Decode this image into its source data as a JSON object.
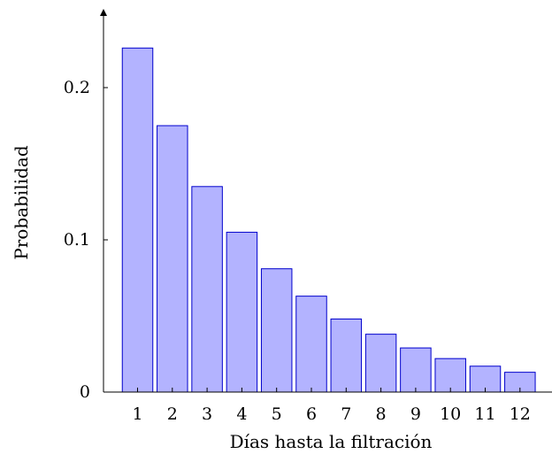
{
  "chart_data": {
    "type": "bar",
    "title": "",
    "xlabel": "Días hasta la filtración",
    "ylabel": "Probabilidad",
    "categories": [
      "1",
      "2",
      "3",
      "4",
      "5",
      "6",
      "7",
      "8",
      "9",
      "10",
      "11",
      "12"
    ],
    "values": [
      0.226,
      0.175,
      0.135,
      0.105,
      0.081,
      0.063,
      0.048,
      0.038,
      0.029,
      0.022,
      0.017,
      0.013
    ],
    "ylim": [
      0,
      0.24
    ],
    "yticks": [
      {
        "value": 0,
        "label": "0"
      },
      {
        "value": 0.1,
        "label": "0.1"
      },
      {
        "value": 0.2,
        "label": "0.2"
      }
    ],
    "grid": false,
    "legend": "none",
    "colors": {
      "bar_fill": "#b3b3ff",
      "bar_stroke": "#0000cc",
      "axis": "#000000"
    }
  }
}
